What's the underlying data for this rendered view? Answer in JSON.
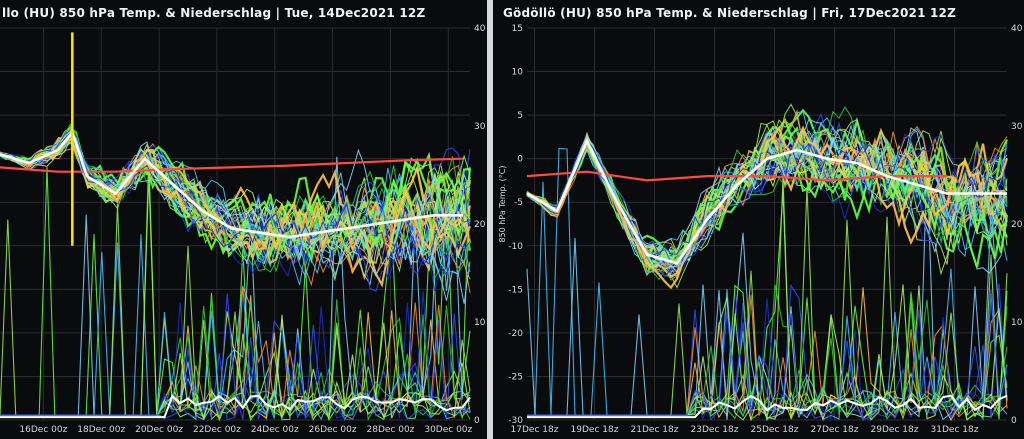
{
  "window": {
    "left_title": "llo  (HU)  850 hPa Temp. & Niederschlag | Tue, 14Dec2021 12Z",
    "right_title": "Gödöllö  (HU)  850 hPa Temp. & Niederschlag | Fri, 17Dec2021 12Z"
  },
  "colors": {
    "background": "#0a0b0d",
    "mean": "#ffffff",
    "climate": "#ff4a3d",
    "marker": "#ffe500",
    "members": [
      "#66ff44",
      "#33cc33",
      "#99ee55",
      "#2f4dff",
      "#44c6ff",
      "#ffc34a",
      "#ff8c3a",
      "#b5f06a",
      "#7fd4ff",
      "#1b2fd1"
    ]
  },
  "chart_data": [
    {
      "type": "line",
      "title": "llo  (HU)  850 hPa Temp. & Niederschlag | Tue, 14Dec2021 12Z",
      "x_ticks": [
        "16Dec 00z",
        "18Dec 00z",
        "20Dec 00z",
        "22Dec 00z",
        "24Dec 00z",
        "26Dec 00z",
        "28Dec 00z",
        "30Dec 00z"
      ],
      "x_range": [
        "14Dec 12z",
        "30Dec 18z"
      ],
      "ylabel_right": "",
      "right_ticks": [
        "40",
        "30",
        "20",
        "10",
        "0"
      ],
      "ylim_temp": [
        -30,
        15
      ],
      "ylim_precip": [
        0,
        40
      ],
      "grid": true,
      "marker_at": "17Dec 00z",
      "series": [
        {
          "role": "ensemble-mean",
          "x": [
            "14Dec 12z",
            "15Dec 12z",
            "16Dec 12z",
            "17Dec 00z",
            "17Dec 12z",
            "18Dec 12z",
            "19Dec 12z",
            "20Dec 12z",
            "21Dec 12z",
            "22Dec 12z",
            "23Dec 12z",
            "24Dec 12z",
            "25Dec 12z",
            "26Dec 12z",
            "27Dec 12z",
            "28Dec 12z",
            "29Dec 12z",
            "30Dec 12z"
          ],
          "y": [
            0.5,
            -0.5,
            1,
            3,
            -2,
            -4,
            0,
            -3,
            -6,
            -8,
            -8.5,
            -9,
            -8.5,
            -8,
            -7.5,
            -7,
            -6.5,
            -6.5
          ]
        },
        {
          "role": "climate",
          "x": [
            "14Dec 12z",
            "16Dec 12z",
            "18Dec 12z",
            "20Dec 12z",
            "22Dec 12z",
            "24Dec 12z",
            "26Dec 12z",
            "28Dec 12z",
            "30Dec 12z"
          ],
          "y": [
            -1,
            -1.5,
            -1.5,
            -1.2,
            -1,
            -0.8,
            -0.5,
            -0.2,
            0
          ]
        }
      ]
    },
    {
      "type": "line",
      "title": "Gödöllö  (HU)  850 hPa Temp. & Niederschlag | Fri, 17Dec2021 12Z",
      "x_ticks": [
        "17Dec 18z",
        "19Dec 18z",
        "21Dec 18z",
        "23Dec 18z",
        "25Dec 18z",
        "27Dec 18z",
        "29Dec 18z",
        "31Dec 18z"
      ],
      "x_range": [
        "17Dec 12z",
        "2Jan 12z"
      ],
      "ylabel": "850 hPa Temp. (°C)",
      "y_ticks": [
        "15",
        "10",
        "5",
        "0",
        "-5",
        "-10",
        "-15",
        "-20",
        "-25",
        "-30"
      ],
      "right_ticks": [
        "40",
        "30",
        "20",
        "10",
        "0"
      ],
      "ylim_temp": [
        -30,
        15
      ],
      "ylim_precip": [
        0,
        40
      ],
      "grid": true,
      "series": [
        {
          "role": "ensemble-mean",
          "x": [
            "17Dec 12z",
            "18Dec 12z",
            "19Dec 12z",
            "20Dec 12z",
            "21Dec 12z",
            "22Dec 12z",
            "23Dec 12z",
            "24Dec 12z",
            "25Dec 12z",
            "26Dec 12z",
            "27Dec 12z",
            "28Dec 12z",
            "29Dec 12z",
            "30Dec 12z",
            "31Dec 12z",
            "1Jan 12z",
            "2Jan 12z"
          ],
          "y": [
            -4,
            -6,
            2,
            -5,
            -11,
            -12,
            -7,
            -3,
            0,
            1,
            0,
            -0.5,
            -2,
            -3,
            -4,
            -4,
            -4
          ]
        },
        {
          "role": "climate",
          "x": [
            "17Dec 12z",
            "19Dec 12z",
            "21Dec 12z",
            "23Dec 12z",
            "25Dec 12z",
            "27Dec 12z",
            "29Dec 12z",
            "31Dec 12z"
          ],
          "y": [
            -2,
            -1.5,
            -2.5,
            -2,
            -2,
            -2.5,
            -2,
            -2
          ]
        }
      ]
    }
  ]
}
